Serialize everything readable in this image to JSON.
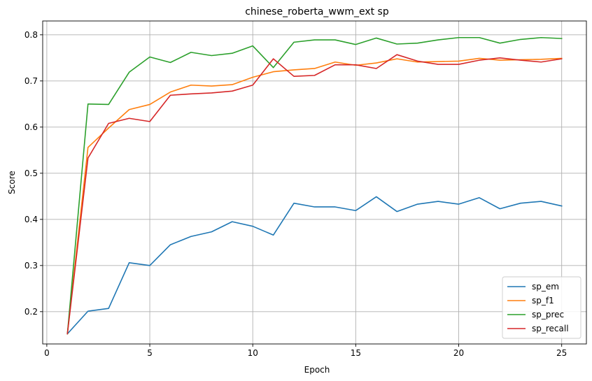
{
  "chart_data": {
    "type": "line",
    "title": "chinese_roberta_wwm_ext sp",
    "xlabel": "Epoch",
    "ylabel": "Score",
    "xlim": [
      -0.2,
      26.2
    ],
    "ylim": [
      0.13,
      0.83
    ],
    "xticks": [
      0,
      5,
      10,
      15,
      20,
      25
    ],
    "yticks": [
      0.2,
      0.3,
      0.4,
      0.5,
      0.6,
      0.7,
      0.8
    ],
    "grid": true,
    "legend_position": "bottom-right",
    "x": [
      1,
      2,
      3,
      4,
      5,
      6,
      7,
      8,
      9,
      10,
      11,
      12,
      13,
      14,
      15,
      16,
      17,
      18,
      19,
      20,
      21,
      22,
      23,
      24,
      25
    ],
    "series": [
      {
        "name": "sp_em",
        "color": "#1f77b4",
        "values": [
          0.152,
          0.201,
          0.207,
          0.306,
          0.3,
          0.345,
          0.363,
          0.373,
          0.395,
          0.385,
          0.366,
          0.435,
          0.427,
          0.427,
          0.419,
          0.449,
          0.417,
          0.433,
          0.439,
          0.433,
          0.447,
          0.423,
          0.435,
          0.439,
          0.429
        ]
      },
      {
        "name": "sp_f1",
        "color": "#ff7f0e",
        "values": [
          0.152,
          0.556,
          0.598,
          0.638,
          0.649,
          0.676,
          0.691,
          0.689,
          0.692,
          0.708,
          0.72,
          0.724,
          0.727,
          0.741,
          0.734,
          0.739,
          0.748,
          0.741,
          0.742,
          0.743,
          0.749,
          0.745,
          0.746,
          0.747,
          0.749
        ]
      },
      {
        "name": "sp_prec",
        "color": "#2ca02c",
        "values": [
          0.152,
          0.65,
          0.649,
          0.719,
          0.752,
          0.74,
          0.762,
          0.755,
          0.76,
          0.776,
          0.729,
          0.784,
          0.789,
          0.789,
          0.779,
          0.793,
          0.78,
          0.782,
          0.789,
          0.794,
          0.794,
          0.782,
          0.79,
          0.794,
          0.792
        ]
      },
      {
        "name": "sp_recall",
        "color": "#d62728",
        "values": [
          0.152,
          0.533,
          0.608,
          0.619,
          0.612,
          0.669,
          0.672,
          0.674,
          0.678,
          0.691,
          0.748,
          0.71,
          0.712,
          0.735,
          0.735,
          0.727,
          0.757,
          0.743,
          0.736,
          0.736,
          0.745,
          0.75,
          0.745,
          0.741,
          0.748
        ]
      }
    ]
  }
}
